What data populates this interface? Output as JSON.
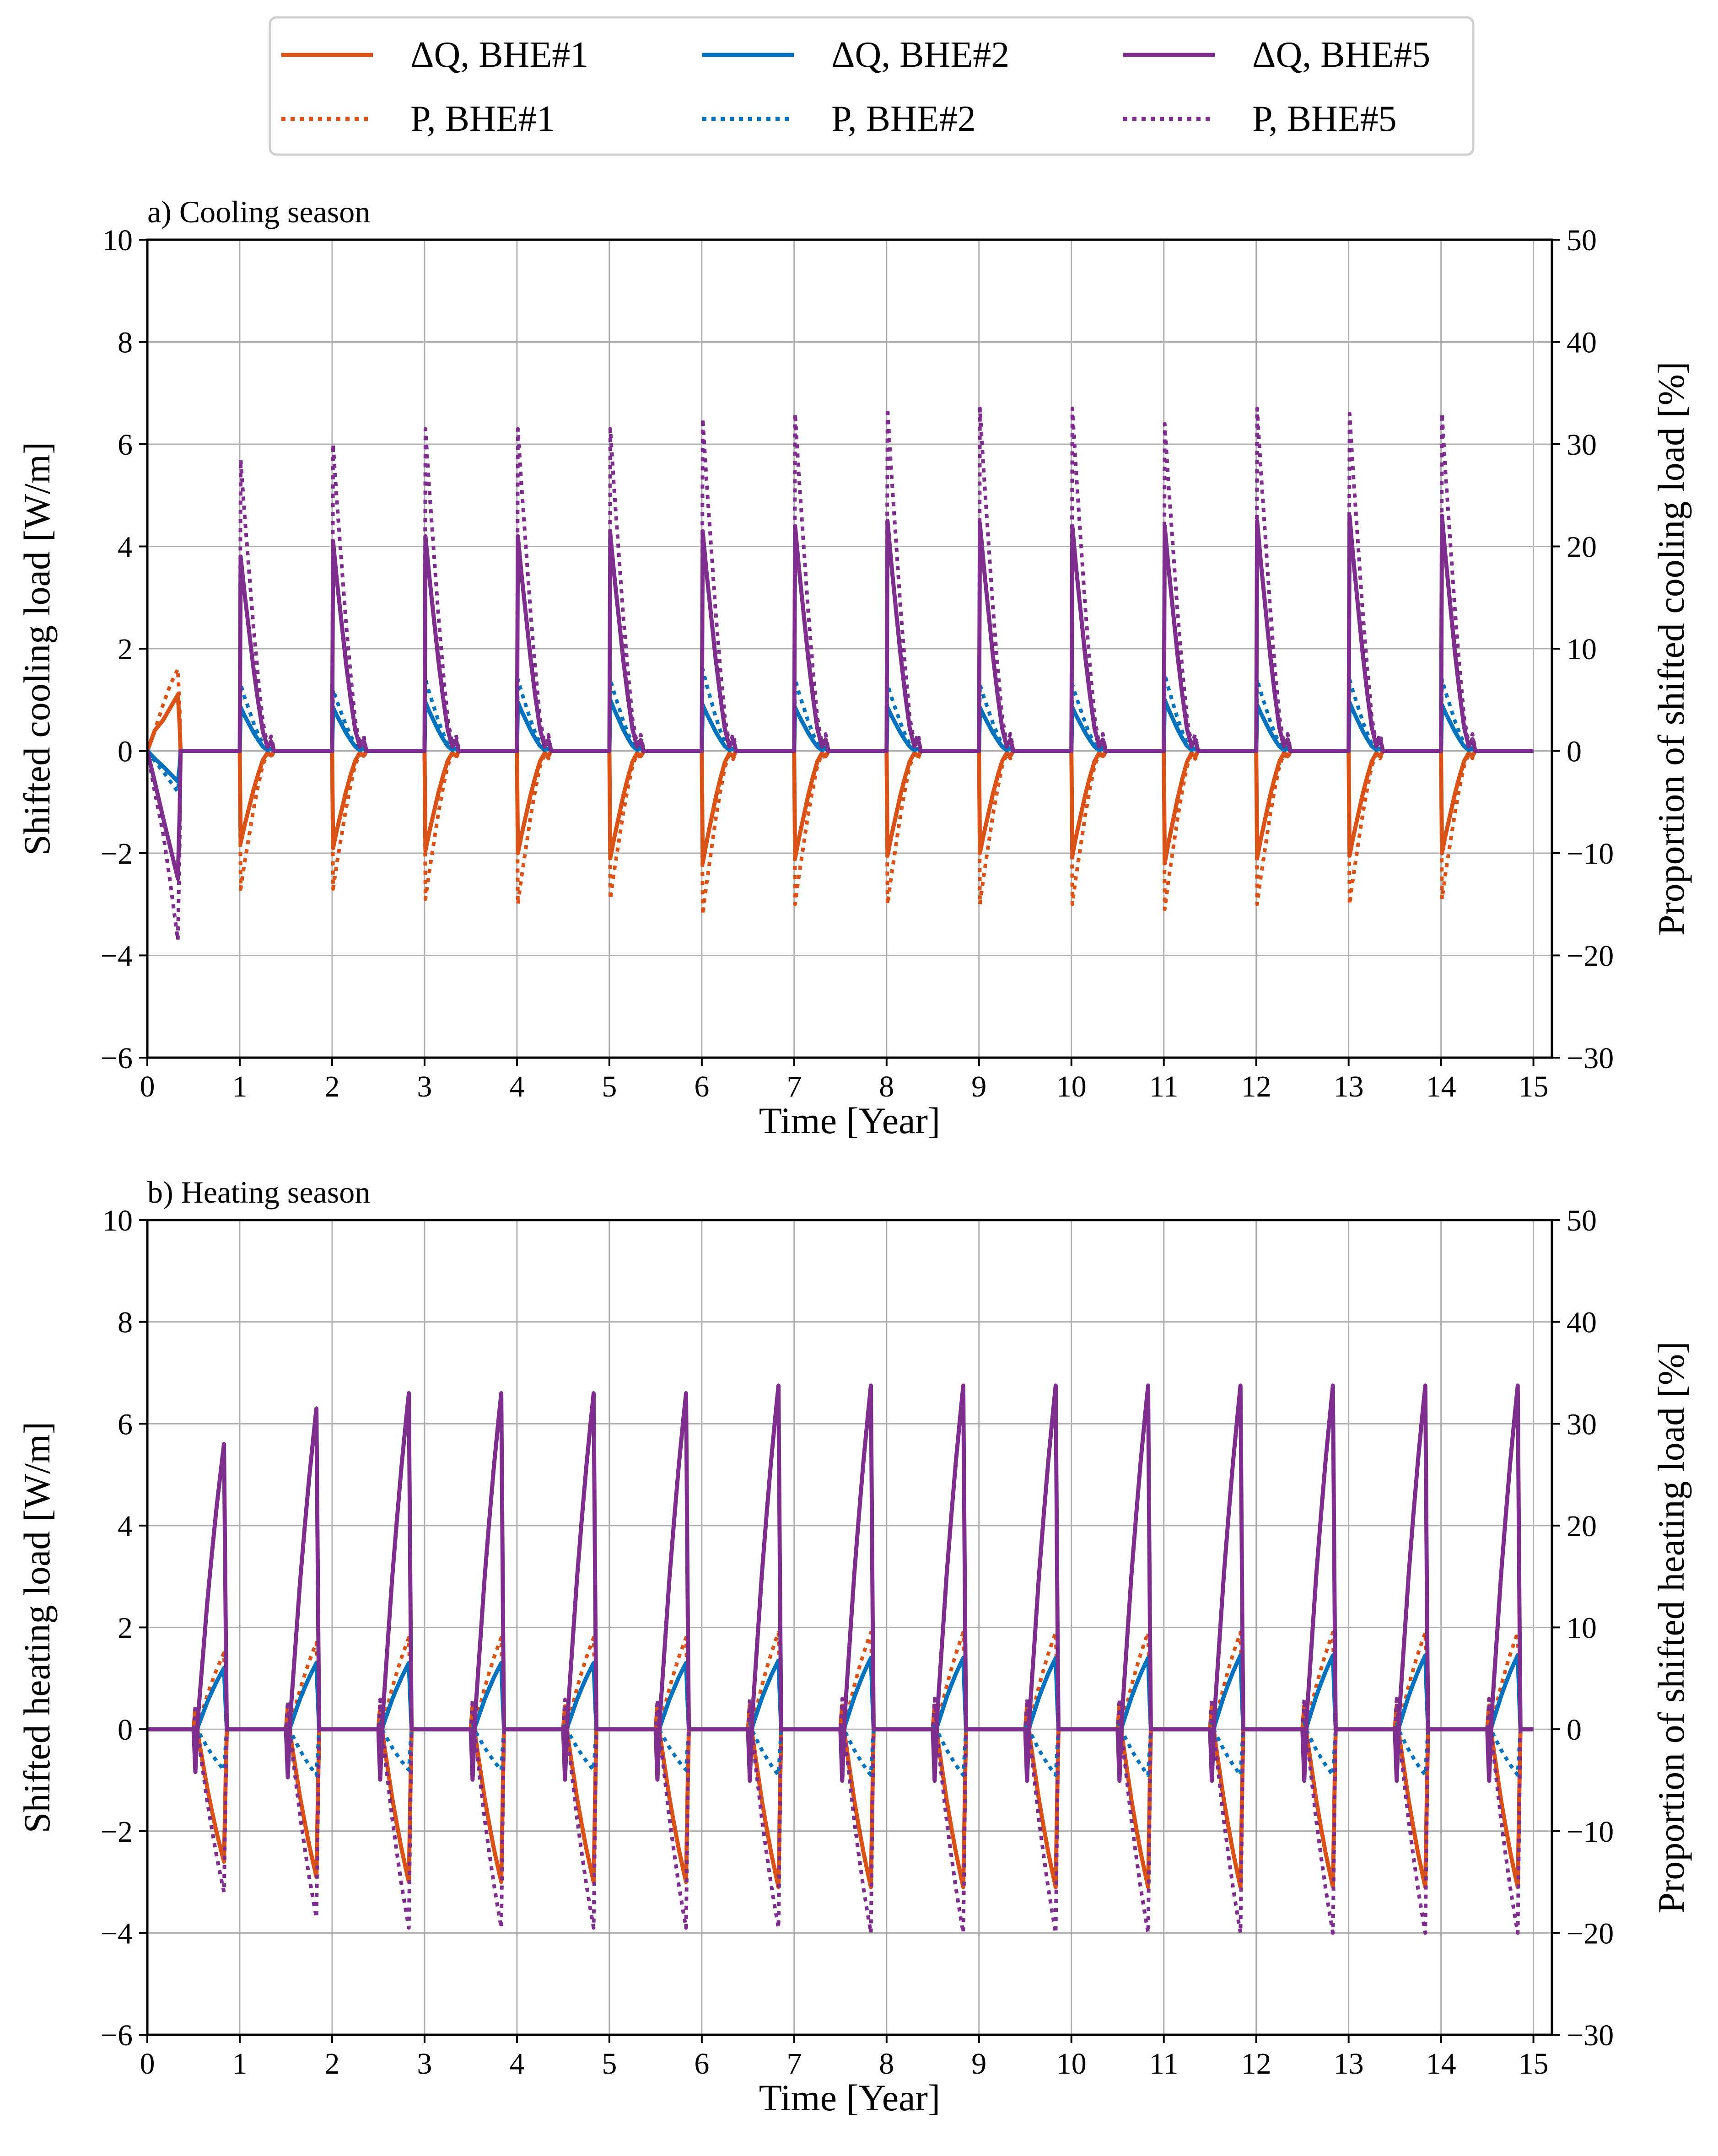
{
  "colors": {
    "BHE#1": "#d95319",
    "BHE#2": "#0072bd",
    "BHE#5": "#7e2f8e",
    "grid": "#b0b0b0"
  },
  "legend": {
    "placement": "top-center",
    "entries": [
      {
        "label": "ΔQ, BHE#1",
        "well": "BHE#1",
        "style": "solid"
      },
      {
        "label": "P, BHE#1",
        "well": "BHE#1",
        "style": "dotted"
      },
      {
        "label": "ΔQ, BHE#2",
        "well": "BHE#2",
        "style": "solid"
      },
      {
        "label": "P, BHE#2",
        "well": "BHE#2",
        "style": "dotted"
      },
      {
        "label": "ΔQ, BHE#5",
        "well": "BHE#5",
        "style": "solid"
      },
      {
        "label": "P, BHE#5",
        "well": "BHE#5",
        "style": "dotted"
      }
    ]
  },
  "chart_data": [
    {
      "type": "line",
      "title": "a) Cooling season",
      "xlabel": "Time [Year]",
      "ylabel": "Shifted cooling load [W/m]",
      "y2label": "Proportion of shifted cooling load [%]",
      "xlim": [
        0,
        15.2
      ],
      "ylim": [
        -6,
        10
      ],
      "y2lim": [
        -30,
        50
      ],
      "xticks": [
        0,
        1,
        2,
        3,
        4,
        5,
        6,
        7,
        8,
        9,
        10,
        11,
        12,
        13,
        14,
        15
      ],
      "yticks": [
        -6,
        -4,
        -2,
        0,
        2,
        4,
        6,
        8,
        10
      ],
      "y2ticks": [
        -30,
        -20,
        -10,
        0,
        10,
        20,
        30,
        40,
        50
      ],
      "grid": true,
      "season": "cooling",
      "series": [
        {
          "name": "ΔQ, BHE#1",
          "well": "BHE#1",
          "axis": "left",
          "style": "solid",
          "x": [
            0,
            0.08,
            0.17,
            0.25,
            0.33,
            0.35,
            0.36,
            1,
            1.01,
            1.05,
            1.1,
            1.15,
            1.2,
            1.25,
            1.3,
            1.35,
            1.36,
            2
          ],
          "y": [
            0,
            0.4,
            0.6,
            0.85,
            1.1,
            0.5,
            0,
            0,
            -1.8,
            -1.5,
            -1.2,
            -0.9,
            -0.5,
            -0.1,
            0.2,
            0.25,
            0,
            0
          ]
        },
        {
          "name": "P, BHE#1",
          "well": "BHE#1",
          "axis": "right",
          "style": "dotted",
          "x": [
            0,
            0.08,
            0.17,
            0.25,
            0.33,
            0.35,
            0.36,
            1,
            1.01,
            1.05,
            1.1,
            1.15,
            1.2,
            1.25,
            1.3,
            1.35,
            1.36,
            2
          ],
          "y": [
            0,
            2,
            4.5,
            6.5,
            8,
            4,
            0,
            0,
            -13.5,
            -10,
            -7,
            -4.5,
            -2,
            0.5,
            1.5,
            1.5,
            0,
            0
          ]
        },
        {
          "name": "ΔQ, BHE#2",
          "well": "BHE#2",
          "axis": "left",
          "style": "solid",
          "x": [
            0,
            0.08,
            0.17,
            0.25,
            0.33,
            0.35,
            0.36,
            1,
            1.01,
            1.05,
            1.1,
            1.15,
            1.2,
            1.25,
            1.3,
            1.35,
            1.36,
            2
          ],
          "y": [
            0,
            -0.15,
            -0.3,
            -0.45,
            -0.6,
            -0.3,
            0,
            0,
            0.85,
            0.75,
            0.6,
            0.4,
            0.25,
            0.1,
            0.05,
            0.02,
            0,
            0
          ]
        },
        {
          "name": "P, BHE#2",
          "well": "BHE#2",
          "axis": "right",
          "style": "dotted",
          "x": [
            0,
            0.08,
            0.17,
            0.25,
            0.33,
            0.35,
            0.36,
            1,
            1.01,
            1.05,
            1.1,
            1.15,
            1.2,
            1.25,
            1.3,
            1.35,
            1.36,
            2
          ],
          "y": [
            0,
            -1,
            -2,
            -3,
            -4,
            -2,
            0,
            0,
            6.5,
            6,
            4.5,
            3,
            1.5,
            0.5,
            0.2,
            0.1,
            0,
            0
          ]
        },
        {
          "name": "ΔQ, BHE#5",
          "well": "BHE#5",
          "axis": "left",
          "style": "solid",
          "x": [
            0,
            0.08,
            0.17,
            0.25,
            0.33,
            0.35,
            0.36,
            1,
            1.01,
            1.05,
            1.1,
            1.15,
            1.2,
            1.25,
            1.3,
            1.35,
            1.36,
            2
          ],
          "y": [
            0,
            -0.6,
            -1.3,
            -1.9,
            -2.5,
            -1.2,
            0,
            0,
            3.8,
            3.0,
            2.0,
            1.2,
            0.5,
            -0.1,
            -0.6,
            -0.7,
            0,
            0
          ]
        },
        {
          "name": "P, BHE#5",
          "well": "BHE#5",
          "axis": "right",
          "style": "dotted",
          "x": [
            0,
            0.08,
            0.17,
            0.25,
            0.33,
            0.35,
            0.36,
            1,
            1.01,
            1.05,
            1.1,
            1.15,
            1.2,
            1.25,
            1.3,
            1.35,
            1.36,
            2
          ],
          "y": [
            0,
            -4,
            -8,
            -13,
            -18.5,
            -9,
            0,
            0,
            28.5,
            22,
            15,
            9,
            4,
            -0.5,
            -3.5,
            -5.5,
            0,
            0
          ]
        }
      ],
      "peaks": {
        "description": "peak values at each year start for years 1-14 (first point after year boundary)",
        "year": [
          1,
          2,
          3,
          4,
          5,
          6,
          7,
          8,
          9,
          10,
          11,
          12,
          13,
          14
        ],
        "dQ_BHE1": [
          -1.8,
          -1.9,
          -1.95,
          -2.0,
          -2.1,
          -2.2,
          -2.1,
          -2.05,
          -2.0,
          -2.05,
          -2.2,
          -2.1,
          -2.05,
          -2.0
        ],
        "P_BHE1": [
          -13.5,
          -13.5,
          -14.5,
          -15,
          -14.5,
          -16,
          -15,
          -15,
          -15,
          -15,
          -15.5,
          -15,
          -15,
          -14.5
        ],
        "dQ_BHE2": [
          0.85,
          0.85,
          0.95,
          0.95,
          1.0,
          0.9,
          0.85,
          0.85,
          0.85,
          0.85,
          1.0,
          0.9,
          0.95,
          0.9
        ],
        "P_BHE2": [
          6.5,
          6,
          7,
          7,
          7,
          8,
          7,
          6.5,
          6.5,
          6.5,
          7.5,
          7,
          7,
          7
        ],
        "dQ_BHE5": [
          3.8,
          4.1,
          4.2,
          4.2,
          4.25,
          4.3,
          4.4,
          4.5,
          4.45,
          4.4,
          4.4,
          4.5,
          4.6,
          4.6
        ],
        "P_BHE5": [
          28.5,
          30,
          31.5,
          31.5,
          31.5,
          32.5,
          33,
          33.5,
          33.5,
          33.5,
          32,
          33.5,
          33,
          33
        ]
      }
    },
    {
      "type": "line",
      "title": "b) Heating season",
      "xlabel": "Time [Year]",
      "ylabel": "Shifted heating load [W/m]",
      "y2label": "Proportion of shifted heating load [%]",
      "xlim": [
        0,
        15.2
      ],
      "ylim": [
        -6,
        10
      ],
      "y2lim": [
        -30,
        50
      ],
      "xticks": [
        0,
        1,
        2,
        3,
        4,
        5,
        6,
        7,
        8,
        9,
        10,
        11,
        12,
        13,
        14,
        15
      ],
      "yticks": [
        -6,
        -4,
        -2,
        0,
        2,
        4,
        6,
        8,
        10
      ],
      "y2ticks": [
        -30,
        -20,
        -10,
        0,
        10,
        20,
        30,
        40,
        50
      ],
      "grid": true,
      "season": "heating",
      "series": [
        {
          "name": "ΔQ, BHE#1",
          "well": "BHE#1",
          "axis": "left",
          "style": "solid"
        },
        {
          "name": "P, BHE#1",
          "well": "BHE#1",
          "axis": "right",
          "style": "dotted"
        },
        {
          "name": "ΔQ, BHE#2",
          "well": "BHE#2",
          "axis": "left",
          "style": "solid"
        },
        {
          "name": "P, BHE#2",
          "well": "BHE#2",
          "axis": "right",
          "style": "dotted"
        },
        {
          "name": "ΔQ, BHE#5",
          "well": "BHE#5",
          "axis": "left",
          "style": "solid"
        },
        {
          "name": "P, BHE#5",
          "well": "BHE#5",
          "axis": "right",
          "style": "dotted"
        }
      ],
      "season_window": {
        "start_offset": 0.5,
        "end_offset": 0.85
      },
      "peaks": {
        "description": "end-of-heating-season values, year index 0-14 (season ends at year+0.85)",
        "year": [
          0,
          1,
          2,
          3,
          4,
          5,
          6,
          7,
          8,
          9,
          10,
          11,
          12,
          13,
          14
        ],
        "dQ_BHE1": [
          -2.6,
          -2.9,
          -3.0,
          -3.0,
          -3.0,
          -3.0,
          -3.1,
          -3.1,
          -3.1,
          -3.1,
          -3.1,
          -3.1,
          -3.1,
          -3.1,
          -3.1
        ],
        "P_BHE1": [
          7.5,
          8.5,
          9,
          9,
          9,
          9,
          9.5,
          9.5,
          9.5,
          9.5,
          9.5,
          9.5,
          9.5,
          9.5,
          9.5
        ],
        "dQ_BHE2": [
          1.2,
          1.3,
          1.3,
          1.3,
          1.3,
          1.3,
          1.35,
          1.4,
          1.4,
          1.4,
          1.4,
          1.45,
          1.45,
          1.45,
          1.45
        ],
        "P_BHE2": [
          -4,
          -4.5,
          -4,
          -4,
          -4,
          -4,
          -4.5,
          -4.5,
          -4.5,
          -4.5,
          -4.5,
          -4.5,
          -4.5,
          -4.5,
          -4.5
        ],
        "dQ_BHE5": [
          5.6,
          6.3,
          6.6,
          6.6,
          6.6,
          6.6,
          6.75,
          6.75,
          6.75,
          6.75,
          6.75,
          6.75,
          6.75,
          6.75,
          6.75
        ],
        "P_BHE5": [
          -16,
          -18.5,
          -19.5,
          -19.5,
          -19.5,
          -19.5,
          -19.5,
          -20,
          -20,
          -20,
          -20,
          -20,
          -20,
          -20,
          -20
        ]
      }
    }
  ]
}
